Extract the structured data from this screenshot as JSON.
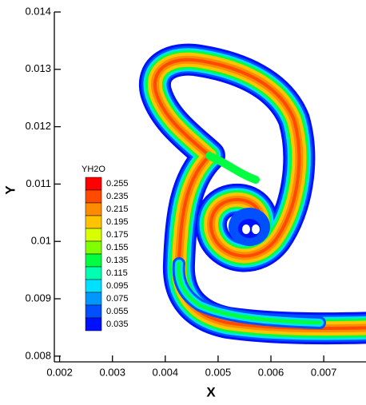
{
  "chart_data": {
    "type": "contour",
    "x_label": "X",
    "y_label": "Y",
    "xlim": [
      0.0019,
      0.0078
    ],
    "xticks": [
      0.002,
      0.003,
      0.004,
      0.005,
      0.006,
      0.007
    ],
    "ylim": [
      0.0079,
      0.014
    ],
    "yticks": [
      0.008,
      0.009,
      0.01,
      0.011,
      0.012,
      0.013,
      0.014
    ],
    "legend": {
      "title": "YH2O",
      "levels": [
        0.255,
        0.235,
        0.215,
        0.195,
        0.175,
        0.155,
        0.135,
        0.115,
        0.095,
        0.075,
        0.055,
        0.035
      ],
      "colors": [
        "#ff0000",
        "#ff4a00",
        "#ff8c00",
        "#ffc400",
        "#d8ff00",
        "#80ff00",
        "#00ff40",
        "#00ffb0",
        "#00e0ff",
        "#0098ff",
        "#0050ff",
        "#0010ff"
      ]
    }
  }
}
